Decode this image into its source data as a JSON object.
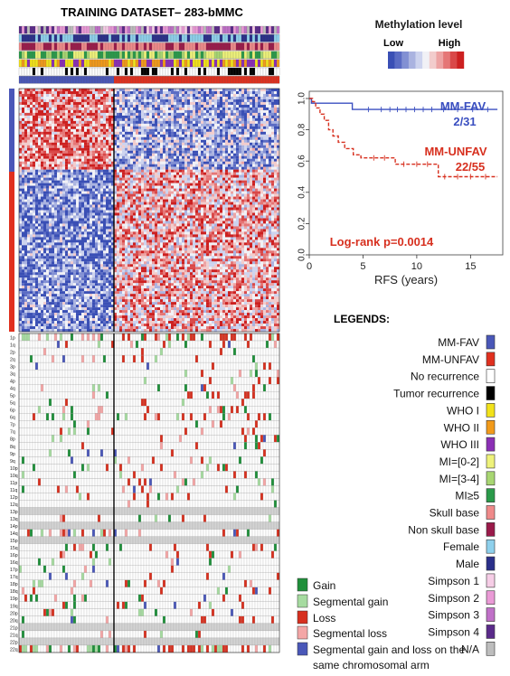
{
  "figure": {
    "title": "TRAINING DATASET– 283-bMMC"
  },
  "methylation_legend": {
    "title": "Methylation level",
    "low": "Low",
    "high": "High",
    "colors": [
      "#3a4fb5",
      "#5b6cc4",
      "#8290d3",
      "#aab3e0",
      "#cdd3ee",
      "#f1f1f6",
      "#f2cccc",
      "#eda3a3",
      "#e57676",
      "#d94848",
      "#cc2020"
    ]
  },
  "legends_heading": "LEGENDS:",
  "legend_items": [
    {
      "label": "MM-FAV",
      "color": "#4a57b8"
    },
    {
      "label": "MM-UNFAV",
      "color": "#e0301e"
    },
    {
      "label": "No recurrence",
      "color": "#ffffff"
    },
    {
      "label": "Tumor recurrence",
      "color": "#000000"
    },
    {
      "label": "WHO I",
      "color": "#f2e21a"
    },
    {
      "label": "WHO II",
      "color": "#f29a1a"
    },
    {
      "label": "WHO III",
      "color": "#8b2fb5"
    },
    {
      "label": "MI=[0-2]",
      "color": "#eef27a"
    },
    {
      "label": "MI=[3-4]",
      "color": "#a8d672"
    },
    {
      "label": "MI≥5",
      "color": "#2a9a4a"
    },
    {
      "label": "Skull base",
      "color": "#ef8a8a"
    },
    {
      "label": "Non skull base",
      "color": "#9a1a4a"
    },
    {
      "label": "Female",
      "color": "#8ed0ec"
    },
    {
      "label": "Male",
      "color": "#2a2f8a"
    },
    {
      "label": "Simpson 1",
      "color": "#f6cde6"
    },
    {
      "label": "Simpson 2",
      "color": "#ea9ad6"
    },
    {
      "label": "Simpson 3",
      "color": "#c070c8"
    },
    {
      "label": "Simpson 4",
      "color": "#5a2a8a"
    },
    {
      "label": "N/A",
      "color": "#bdbdbd"
    }
  ],
  "cnv_legend": [
    {
      "label": "Gain",
      "color": "#1f8f3a"
    },
    {
      "label": "Segmental gain",
      "color": "#a6dba0"
    },
    {
      "label": "Loss",
      "color": "#d7301f"
    },
    {
      "label": "Segmental loss",
      "color": "#f4a6a6"
    },
    {
      "label": "Segmental gain and loss on the",
      "label2": "same chromosomal arm",
      "color": "#4a57b8"
    }
  ],
  "chromosome_arms": [
    "1p",
    "1q",
    "2p",
    "2q",
    "3p",
    "3q",
    "4p",
    "4q",
    "5p",
    "5q",
    "6p",
    "6q",
    "7p",
    "7q",
    "8p",
    "8q",
    "9p",
    "9q",
    "10p",
    "10q",
    "11p",
    "11q",
    "12p",
    "12q",
    "13p",
    "13q",
    "14p",
    "14q",
    "15p",
    "15q",
    "16p",
    "16q",
    "17p",
    "17q",
    "18p",
    "18q",
    "19p",
    "19q",
    "20p",
    "20q",
    "21p",
    "21q",
    "22p",
    "22q"
  ],
  "chart_data": {
    "type": "line",
    "xlabel": "RFS (years)",
    "ylabel": "",
    "xlim": [
      0,
      18
    ],
    "ylim": [
      0,
      1.0
    ],
    "x_ticks": [
      0,
      5,
      10,
      15
    ],
    "y_ticks": [
      0.0,
      0.2,
      0.4,
      0.6,
      0.8,
      1.0
    ],
    "grid": false,
    "annotation": "Log-rank p=0.0014",
    "series": [
      {
        "name": "MM-FAV",
        "count_label": "2/31",
        "color": "#3a4fc0",
        "dash": false,
        "x": [
          0,
          0.2,
          0.2,
          4.0,
          4.0,
          17.5
        ],
        "y": [
          1.0,
          1.0,
          0.97,
          0.97,
          0.93,
          0.93
        ]
      },
      {
        "name": "MM-UNFAV",
        "count_label": "22/55",
        "color": "#d7301f",
        "dash": true,
        "x": [
          0,
          0.3,
          0.3,
          0.6,
          0.6,
          1.0,
          1.0,
          1.4,
          1.4,
          1.8,
          1.8,
          2.2,
          2.2,
          2.7,
          2.7,
          3.3,
          3.3,
          4.1,
          4.1,
          4.8,
          4.8,
          8.0,
          8.0,
          12.0,
          12.0,
          17.5
        ],
        "y": [
          1.0,
          1.0,
          0.98,
          0.98,
          0.94,
          0.94,
          0.9,
          0.9,
          0.86,
          0.86,
          0.8,
          0.8,
          0.76,
          0.76,
          0.72,
          0.72,
          0.68,
          0.68,
          0.64,
          0.64,
          0.62,
          0.62,
          0.58,
          0.58,
          0.5,
          0.5
        ]
      }
    ]
  }
}
